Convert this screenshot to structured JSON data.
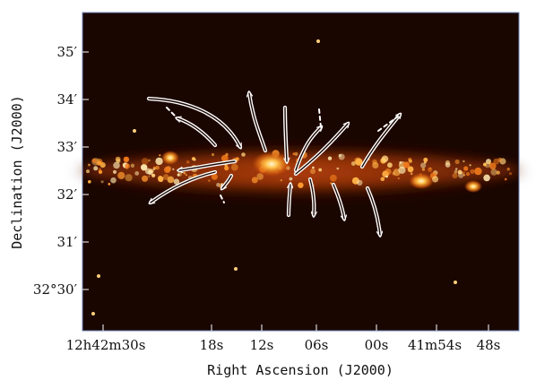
{
  "figure": {
    "y_axis_title": "Declination (J2000)",
    "x_axis_title": "Right Ascension (J2000)",
    "y_ticks": [
      {
        "label": "35′"
      },
      {
        "label": "34′"
      },
      {
        "label": "33′"
      },
      {
        "label": "32′"
      },
      {
        "label": "31′"
      },
      {
        "label": "32°30′"
      }
    ],
    "x_ticks": [
      {
        "label": "12h42m30s"
      },
      {
        "label": "18s"
      },
      {
        "label": "12s"
      },
      {
        "label": "06s"
      },
      {
        "label": "00s"
      },
      {
        "label": "41m54s"
      },
      {
        "label": "48s"
      }
    ],
    "colors": {
      "background": "#1a0600",
      "disk_glow": "#8a2c05",
      "bright_emission": "#ffe7a6",
      "arrows": "#ffffff",
      "frame": "#6f86b7"
    }
  }
}
